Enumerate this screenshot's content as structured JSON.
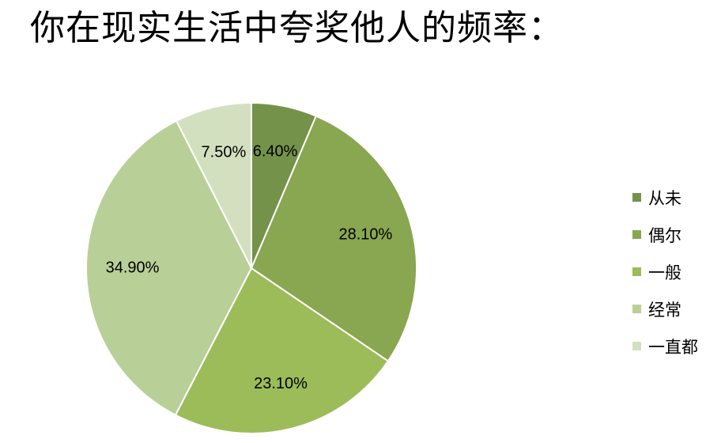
{
  "chart_data": {
    "type": "pie",
    "title": "你在现实生活中夸奖他人的频率：",
    "start_angle": "12 o'clock",
    "direction": "clockwise",
    "slices": [
      {
        "name": "从未",
        "value": 6.4,
        "label": "6.40%",
        "color": "#75924a"
      },
      {
        "name": "偶尔",
        "value": 28.1,
        "label": "28.10%",
        "color": "#89a650"
      },
      {
        "name": "一般",
        "value": 23.1,
        "label": "23.10%",
        "color": "#9cbc5a"
      },
      {
        "name": "经常",
        "value": 34.9,
        "label": "34.90%",
        "color": "#b9cf98"
      },
      {
        "name": "一直都",
        "value": 7.5,
        "label": "7.50%",
        "color": "#d3e0c0"
      }
    ],
    "legend_position": "right"
  }
}
